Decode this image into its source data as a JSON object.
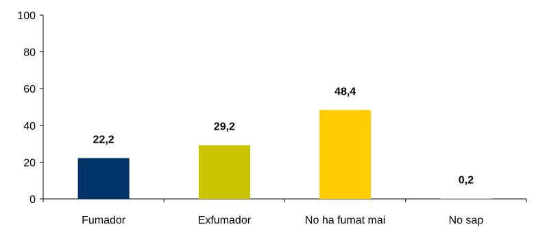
{
  "chart_data": {
    "type": "bar",
    "categories": [
      "Fumador",
      "Exfumador",
      "No ha fumat mai",
      "No sap"
    ],
    "values": [
      22.2,
      29.2,
      48.4,
      0.2
    ],
    "value_labels": [
      "22,2",
      "29,2",
      "48,4",
      "0,2"
    ],
    "colors": [
      "#003366",
      "#C9C300",
      "#FFCC00",
      "#999999"
    ],
    "ylim": [
      0,
      100
    ],
    "yticks": [
      0,
      20,
      40,
      60,
      80,
      100
    ],
    "title": "",
    "xlabel": "",
    "ylabel": "",
    "grid": false,
    "legend": "none"
  }
}
